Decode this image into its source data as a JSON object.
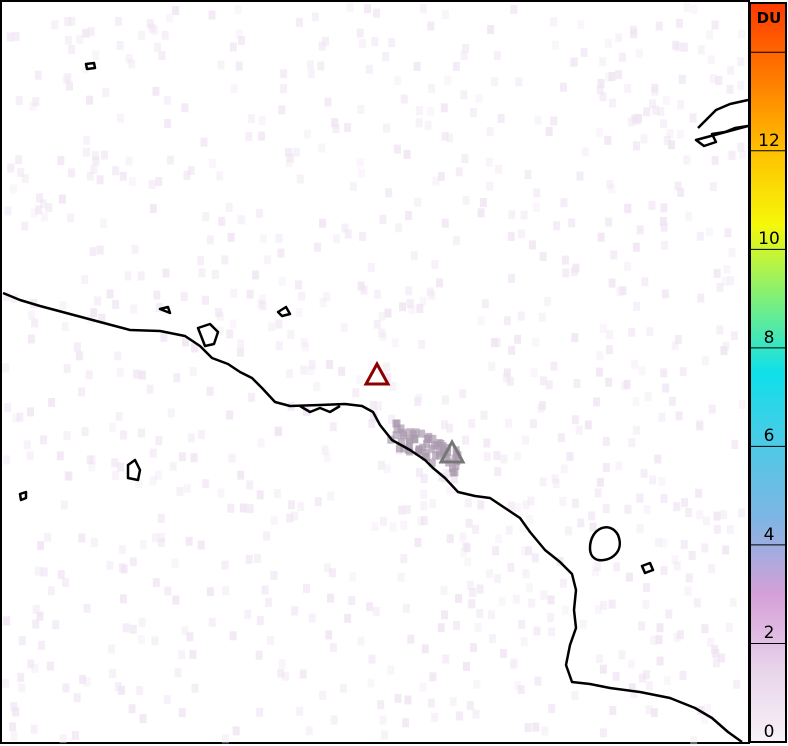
{
  "colorbar": {
    "unit": "DU",
    "min": 0,
    "max": 15,
    "ticks": [
      0,
      2,
      4,
      6,
      8,
      10,
      12,
      14
    ],
    "tick_labels": [
      "0",
      "2",
      "4",
      "6",
      "8",
      "10",
      "12",
      ""
    ],
    "colors": [
      "#f7f2f8",
      "#e8d3ea",
      "#d59fd8",
      "#7fb5e4",
      "#4fc9e6",
      "#0fe0ea",
      "#7ef07a",
      "#f6f80a",
      "#ffc000",
      "#ff7a00",
      "#ff3a00"
    ]
  },
  "markers": [
    {
      "type": "triangle",
      "color": "#8b0000"
    },
    {
      "type": "triangle",
      "color": "#777777"
    }
  ]
}
